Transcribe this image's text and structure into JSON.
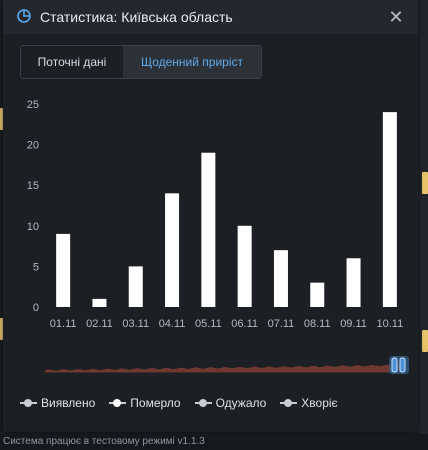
{
  "modal": {
    "title": "Статистика: Київська область",
    "tabs": [
      {
        "label": "Поточні дані",
        "active": false
      },
      {
        "label": "Щоденний приріст",
        "active": true
      }
    ]
  },
  "chart_data": {
    "type": "bar",
    "categories": [
      "01.11",
      "02.11",
      "03.11",
      "04.11",
      "05.11",
      "06.11",
      "07.11",
      "08.11",
      "09.11",
      "10.11"
    ],
    "values": [
      9,
      1,
      5,
      14,
      19,
      10,
      7,
      3,
      6,
      24
    ],
    "ylim": [
      0,
      25
    ],
    "yticks": [
      0,
      5,
      10,
      15,
      20,
      25
    ],
    "grid": false,
    "bar_color": "#ffffff"
  },
  "legend": [
    {
      "label": "Виявлено"
    },
    {
      "label": "Померло"
    },
    {
      "label": "Одужало"
    },
    {
      "label": "Хворіє"
    }
  ],
  "status_bar": {
    "text": "Система працює в тестовому режимі v1.1.3"
  },
  "colors": {
    "accent": "#5fa8e8",
    "slider_fill": "#7a3a30",
    "slider_handle": "#4a90d9"
  }
}
